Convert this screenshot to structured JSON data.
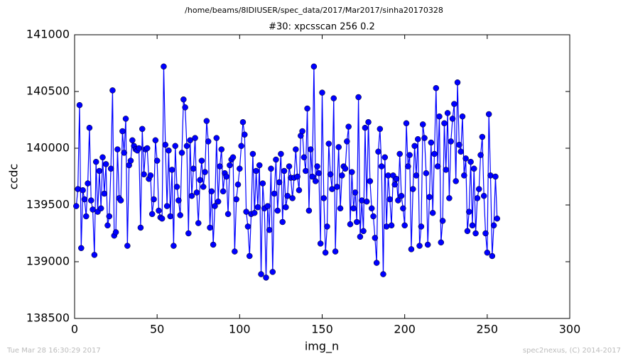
{
  "chart_data": {
    "type": "line",
    "suptitle": "/home/beams/8IDIUSER/spec_data/2017/Mar2017/sinha20170328",
    "title": "#30: xpcsscan 256 0.2",
    "xlabel": "img_n",
    "ylabel": "ccdc",
    "footer_left": "Tue Mar 28 16:30:29 2017",
    "footer_right": "spec2nexus, (C) 2014-2017",
    "xlim": [
      0,
      300
    ],
    "xticks": [
      0,
      50,
      100,
      150,
      200,
      250,
      300
    ],
    "ylim": [
      138500,
      141000
    ],
    "yticks": [
      138500,
      139000,
      139500,
      140000,
      140500,
      141000
    ],
    "grid": false,
    "x": [
      1,
      2,
      3,
      4,
      5,
      6,
      7,
      8,
      9,
      10,
      11,
      12,
      13,
      14,
      15,
      16,
      17,
      18,
      19,
      20,
      21,
      22,
      23,
      24,
      25,
      26,
      27,
      28,
      29,
      30,
      31,
      32,
      33,
      34,
      35,
      36,
      37,
      38,
      39,
      40,
      41,
      42,
      43,
      44,
      45,
      46,
      47,
      48,
      49,
      50,
      51,
      52,
      53,
      54,
      55,
      56,
      57,
      58,
      59,
      60,
      61,
      62,
      63,
      64,
      65,
      66,
      67,
      68,
      69,
      70,
      71,
      72,
      73,
      74,
      75,
      76,
      77,
      78,
      79,
      80,
      81,
      82,
      83,
      84,
      85,
      86,
      87,
      88,
      89,
      90,
      91,
      92,
      93,
      94,
      95,
      96,
      97,
      98,
      99,
      100,
      101,
      102,
      103,
      104,
      105,
      106,
      107,
      108,
      109,
      110,
      111,
      112,
      113,
      114,
      115,
      116,
      117,
      118,
      119,
      120,
      121,
      122,
      123,
      124,
      125,
      126,
      127,
      128,
      129,
      130,
      131,
      132,
      133,
      134,
      135,
      136,
      137,
      138,
      139,
      140,
      141,
      142,
      143,
      144,
      145,
      146,
      147,
      148,
      149,
      150,
      151,
      152,
      153,
      154,
      155,
      156,
      157,
      158,
      159,
      160,
      161,
      162,
      163,
      164,
      165,
      166,
      167,
      168,
      169,
      170,
      171,
      172,
      173,
      174,
      175,
      176,
      177,
      178,
      179,
      180,
      181,
      182,
      183,
      184,
      185,
      186,
      187,
      188,
      189,
      190,
      191,
      192,
      193,
      194,
      195,
      196,
      197,
      198,
      199,
      200,
      201,
      202,
      203,
      204,
      205,
      206,
      207,
      208,
      209,
      210,
      211,
      212,
      213,
      214,
      215,
      216,
      217,
      218,
      219,
      220,
      221,
      222,
      223,
      224,
      225,
      226,
      227,
      228,
      229,
      230,
      231,
      232,
      233,
      234,
      235,
      236,
      237,
      238,
      239,
      240,
      241,
      242,
      243,
      244,
      245,
      246,
      247,
      248,
      249,
      250,
      251,
      252,
      253,
      254,
      255,
      256
    ],
    "series": [
      {
        "name": "ccdc",
        "color": "#0000ff",
        "values": [
          139490,
          139640,
          140380,
          139120,
          139630,
          139550,
          139400,
          139690,
          140180,
          139540,
          139460,
          139060,
          139880,
          139440,
          139800,
          139470,
          139920,
          139600,
          139860,
          139320,
          139400,
          139820,
          140510,
          139230,
          139260,
          139990,
          139560,
          139540,
          140150,
          139960,
          140260,
          139140,
          139850,
          139890,
          140070,
          140020,
          139990,
          139980,
          140000,
          139300,
          140170,
          139770,
          139990,
          140000,
          139730,
          139760,
          139420,
          139550,
          140070,
          139890,
          139450,
          139390,
          139380,
          140720,
          140030,
          139490,
          139980,
          139400,
          139810,
          139140,
          140020,
          139660,
          139540,
          139410,
          139960,
          140430,
          140360,
          140020,
          139250,
          140070,
          139580,
          139820,
          140090,
          139610,
          139340,
          139720,
          139890,
          139660,
          139790,
          140240,
          140060,
          139300,
          139620,
          139150,
          139490,
          140090,
          139530,
          139840,
          139990,
          139620,
          139780,
          139750,
          139420,
          139850,
          139900,
          139920,
          139090,
          139550,
          139680,
          139820,
          140020,
          140230,
          140120,
          139440,
          139310,
          139050,
          139420,
          139950,
          139430,
          139800,
          139480,
          139850,
          138890,
          139690,
          139470,
          138860,
          139490,
          139280,
          139820,
          138910,
          139600,
          139900,
          139450,
          139700,
          139950,
          139350,
          139800,
          139480,
          139580,
          139840,
          139740,
          139560,
          139740,
          139990,
          139750,
          139630,
          140110,
          140150,
          139920,
          139800,
          140350,
          139450,
          139990,
          139750,
          140720,
          139710,
          139840,
          139780,
          139160,
          140490,
          139560,
          139080,
          139310,
          140040,
          139770,
          139640,
          140440,
          139090,
          139660,
          140010,
          139470,
          139760,
          139840,
          139820,
          140060,
          140190,
          139330,
          139790,
          139470,
          139610,
          139350,
          140450,
          139220,
          139540,
          139270,
          140180,
          139530,
          140230,
          139710,
          139470,
          139400,
          139210,
          138990,
          139970,
          140170,
          139840,
          138890,
          139920,
          139310,
          139760,
          139550,
          139320,
          139760,
          139680,
          139730,
          139540,
          139950,
          139580,
          139470,
          139320,
          140220,
          139840,
          139940,
          139110,
          139640,
          140020,
          139760,
          140080,
          139140,
          139310,
          140210,
          140090,
          139780,
          139150,
          139570,
          140050,
          139430,
          139950,
          140530,
          139840,
          140280,
          139170,
          139360,
          140220,
          139810,
          140310,
          139560,
          140060,
          140260,
          140390,
          139710,
          140580,
          140030,
          139970,
          140280,
          139760,
          139910,
          139270,
          139440,
          139880,
          139320,
          139820,
          139250,
          139560,
          139640,
          139940,
          140100,
          139580,
          139250,
          139080,
          140300,
          139760,
          139050,
          139320,
          139750,
          139380
        ]
      }
    ]
  }
}
